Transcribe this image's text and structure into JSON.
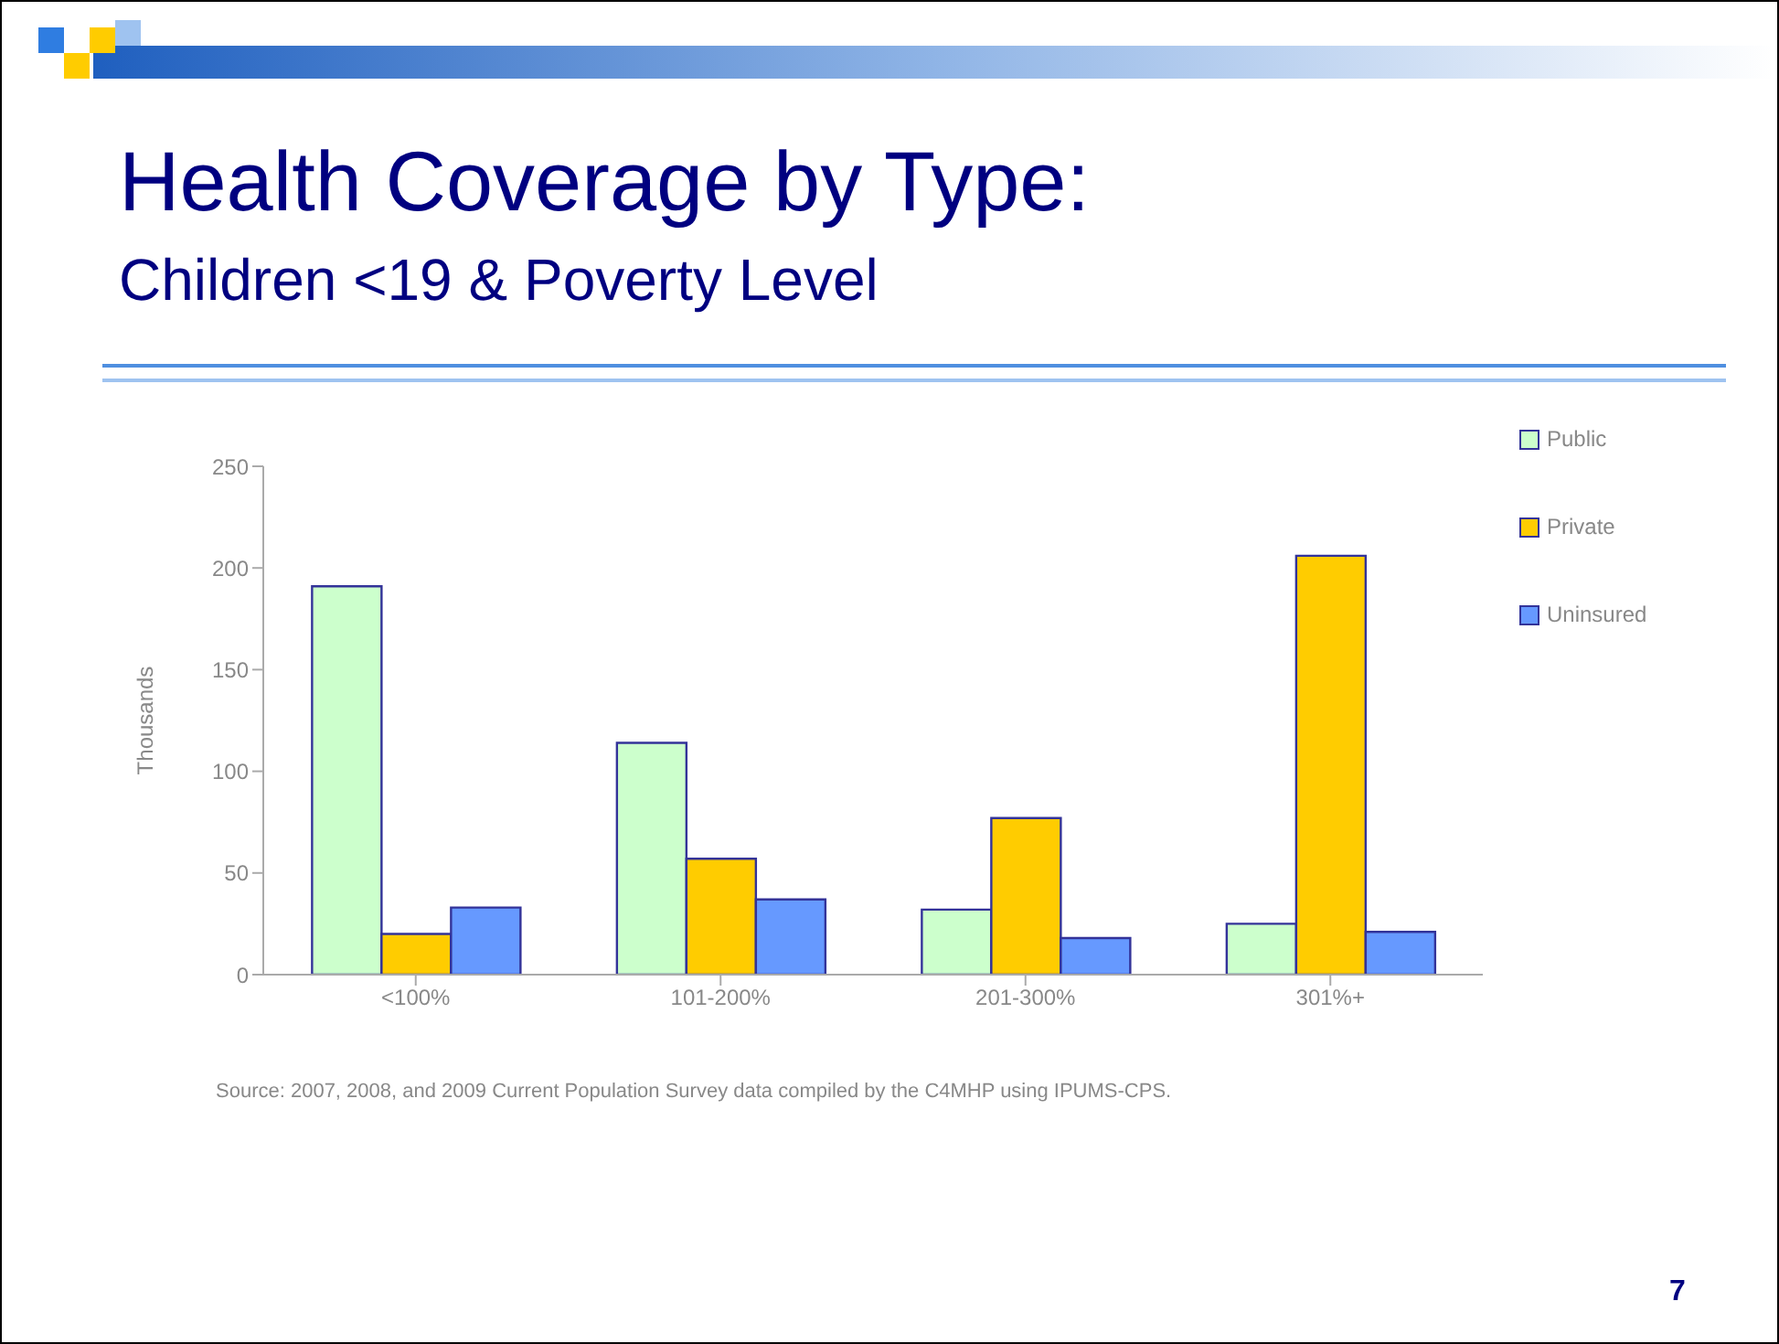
{
  "chart_data": {
    "type": "bar",
    "title": "Health Coverage by Type:",
    "subtitle": "Children <19 & Poverty Level",
    "ylabel": "Thousands",
    "categories": [
      "<100%",
      "101-200%",
      "201-300%",
      "301%+"
    ],
    "series": [
      {
        "name": "Public",
        "color": "#ccffcc",
        "values": [
          191,
          114,
          32,
          25
        ]
      },
      {
        "name": "Private",
        "color": "#ffcc00",
        "values": [
          20,
          57,
          77,
          206
        ]
      },
      {
        "name": "Uninsured",
        "color": "#6699ff",
        "values": [
          33,
          37,
          18,
          21
        ]
      }
    ],
    "ylim": [
      0,
      250
    ],
    "yticks": [
      0,
      50,
      100,
      150,
      200,
      250
    ],
    "grid": false,
    "legend": "top right",
    "annotations": [
      "Source:  2007, 2008,  and 2009 Current Population Survey data compiled by the C4MHP using IPUMS-CPS.",
      "7"
    ]
  }
}
